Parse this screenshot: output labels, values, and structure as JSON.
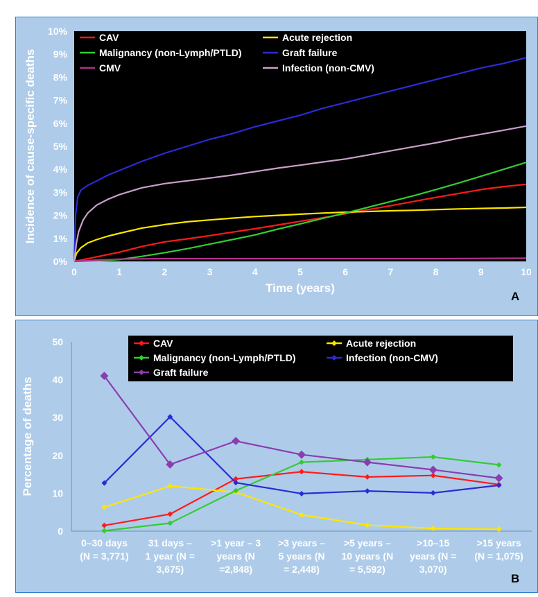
{
  "chart_data": [
    {
      "type": "line",
      "panel_label": "A",
      "xlabel": "Time (years)",
      "ylabel": "Incidence of cause-specific deaths",
      "xlim": [
        0,
        10
      ],
      "ylim": [
        0,
        10
      ],
      "x_ticks": [
        "0",
        "1",
        "2",
        "3",
        "4",
        "5",
        "6",
        "7",
        "8",
        "9",
        "10"
      ],
      "y_ticks": [
        "0%",
        "1%",
        "2%",
        "3%",
        "4%",
        "5%",
        "6%",
        "7%",
        "8%",
        "9%",
        "10%"
      ],
      "legend_position": "top",
      "colors": {
        "background": "#000000",
        "panel": "#aecce9"
      },
      "series": [
        {
          "name": "CAV",
          "color": "#ff1a1a",
          "x": [
            0,
            0.5,
            1,
            1.5,
            2,
            2.5,
            3,
            3.5,
            4,
            4.5,
            5,
            5.5,
            6,
            6.5,
            7,
            7.5,
            8,
            8.5,
            9,
            9.5,
            10
          ],
          "y": [
            0,
            0.2,
            0.4,
            0.65,
            0.85,
            0.98,
            1.12,
            1.27,
            1.42,
            1.58,
            1.74,
            1.9,
            2.07,
            2.25,
            2.42,
            2.6,
            2.78,
            2.95,
            3.12,
            3.25,
            3.35
          ]
        },
        {
          "name": "Acute rejection",
          "color": "#ffe600",
          "x": [
            0,
            0.05,
            0.15,
            0.3,
            0.5,
            0.75,
            1,
            1.5,
            2,
            2.5,
            3,
            3.5,
            4,
            4.5,
            5,
            5.5,
            6,
            6.5,
            7,
            7.5,
            8,
            8.5,
            9,
            9.5,
            10
          ],
          "y": [
            0,
            0.35,
            0.6,
            0.8,
            0.95,
            1.1,
            1.22,
            1.45,
            1.6,
            1.72,
            1.8,
            1.88,
            1.95,
            2.0,
            2.05,
            2.1,
            2.14,
            2.17,
            2.2,
            2.22,
            2.25,
            2.28,
            2.3,
            2.32,
            2.35
          ]
        },
        {
          "name": "Malignancy (non-Lymph/PTLD)",
          "color": "#33cc33",
          "x": [
            0,
            0.5,
            1,
            1.5,
            2,
            2.5,
            3,
            3.5,
            4,
            4.5,
            5,
            5.5,
            6,
            6.5,
            7,
            7.5,
            8,
            8.5,
            9,
            9.5,
            10
          ],
          "y": [
            0,
            0.03,
            0.08,
            0.22,
            0.38,
            0.55,
            0.75,
            0.95,
            1.15,
            1.4,
            1.63,
            1.87,
            2.1,
            2.35,
            2.6,
            2.85,
            3.12,
            3.4,
            3.7,
            4.0,
            4.3
          ]
        },
        {
          "name": "Graft failure",
          "color": "#2b2bd6",
          "x": [
            0,
            0.03,
            0.08,
            0.15,
            0.3,
            0.5,
            0.75,
            1,
            1.5,
            2,
            2.5,
            3,
            3.5,
            4,
            4.5,
            5,
            5.5,
            6,
            6.5,
            7,
            7.5,
            8,
            8.5,
            9,
            9.5,
            10
          ],
          "y": [
            0,
            2.0,
            2.8,
            3.1,
            3.3,
            3.5,
            3.75,
            3.95,
            4.35,
            4.7,
            5.0,
            5.3,
            5.55,
            5.85,
            6.1,
            6.35,
            6.65,
            6.9,
            7.15,
            7.4,
            7.65,
            7.9,
            8.15,
            8.4,
            8.6,
            8.85
          ]
        },
        {
          "name": "CMV",
          "color": "#b0308c",
          "x": [
            0,
            0.5,
            1,
            1.5,
            2,
            3,
            4,
            5,
            6,
            7,
            8,
            9,
            10
          ],
          "y": [
            0,
            0.06,
            0.1,
            0.11,
            0.12,
            0.12,
            0.12,
            0.12,
            0.12,
            0.12,
            0.12,
            0.13,
            0.14
          ]
        },
        {
          "name": "Infection (non-CMV)",
          "color": "#c9a0c9",
          "x": [
            0,
            0.05,
            0.1,
            0.2,
            0.3,
            0.5,
            0.75,
            1,
            1.5,
            2,
            2.5,
            3,
            3.5,
            4,
            4.5,
            5,
            5.5,
            6,
            6.5,
            7,
            7.5,
            8,
            8.5,
            9,
            9.5,
            10
          ],
          "y": [
            0,
            0.8,
            1.3,
            1.8,
            2.1,
            2.45,
            2.7,
            2.9,
            3.2,
            3.38,
            3.5,
            3.62,
            3.75,
            3.9,
            4.05,
            4.18,
            4.32,
            4.45,
            4.62,
            4.8,
            4.98,
            5.15,
            5.35,
            5.52,
            5.7,
            5.88
          ]
        }
      ],
      "legend": [
        {
          "label": "CAV",
          "color": "#ff1a1a"
        },
        {
          "label": "Acute rejection",
          "color": "#ffe600"
        },
        {
          "label": "Malignancy (non-Lymph/PTLD)",
          "color": "#33cc33"
        },
        {
          "label": "Graft failure",
          "color": "#2b2bd6"
        },
        {
          "label": "CMV",
          "color": "#b0308c"
        },
        {
          "label": "Infection (non-CMV)",
          "color": "#c9a0c9"
        }
      ]
    },
    {
      "type": "line",
      "panel_label": "B",
      "xlabel": "",
      "ylabel": "Percentage of deaths",
      "ylim": [
        0,
        50
      ],
      "y_ticks": [
        "0",
        "10",
        "20",
        "30",
        "40",
        "50"
      ],
      "legend_position": "top",
      "colors": {
        "background": "#aecce9"
      },
      "categories": [
        [
          "0–30 days",
          "(N = 3,771)"
        ],
        [
          "31 days –",
          "1 year  (N =",
          "3,675)"
        ],
        [
          ">1 year – 3",
          "years (N",
          "=2,848)"
        ],
        [
          ">3 years –",
          "5 years (N",
          "= 2,448)"
        ],
        [
          ">5 years –",
          "10 years (N",
          "= 5,592)"
        ],
        [
          ">10–15",
          "years  (N =",
          "3,070)"
        ],
        [
          ">15 years",
          "(N = 1,075)"
        ]
      ],
      "series": [
        {
          "name": "CAV",
          "color": "#ff1a1a",
          "values": [
            1.5,
            4.5,
            13.8,
            15.7,
            14.3,
            14.7,
            12.3
          ]
        },
        {
          "name": "Acute rejection",
          "color": "#ffe600",
          "values": [
            6.3,
            11.9,
            10.3,
            4.3,
            1.6,
            0.7,
            0.5
          ]
        },
        {
          "name": "Malignancy (non-Lymph/PTLD)",
          "color": "#33cc33",
          "values": [
            0.1,
            2.1,
            10.7,
            18.2,
            18.9,
            19.6,
            17.5
          ]
        },
        {
          "name": "Infection (non-CMV)",
          "color": "#2b2bd6",
          "values": [
            12.7,
            30.2,
            12.8,
            9.9,
            10.6,
            10.1,
            12.1
          ]
        },
        {
          "name": "Graft failure",
          "color": "#8a3db0",
          "values": [
            41.0,
            17.6,
            23.8,
            20.2,
            18.2,
            16.2,
            14.0
          ]
        }
      ],
      "legend": [
        {
          "label": "CAV",
          "color": "#ff1a1a"
        },
        {
          "label": "Acute rejection",
          "color": "#ffe600"
        },
        {
          "label": "Malignancy (non-Lymph/PTLD)",
          "color": "#33cc33"
        },
        {
          "label": "Infection (non-CMV)",
          "color": "#2b2bd6"
        },
        {
          "label": "Graft failure",
          "color": "#8a3db0"
        }
      ]
    }
  ]
}
